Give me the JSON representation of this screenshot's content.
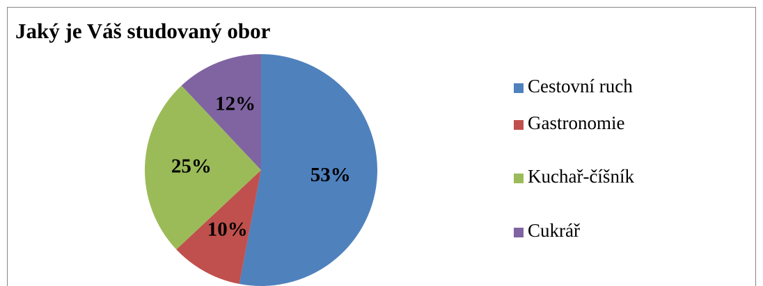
{
  "chart_data": {
    "type": "pie",
    "title": "Jaký je Váš studovaný obor",
    "categories": [
      "Cestovní ruch",
      "Gastronomie",
      "Kuchař-číšník",
      "Cukrář"
    ],
    "values": [
      53,
      10,
      25,
      12
    ],
    "value_labels": [
      "53%",
      "10%",
      "25%",
      "12%"
    ],
    "colors": [
      "#4f81bd",
      "#c0504d",
      "#9bbb59",
      "#8064a2"
    ],
    "legend": "right"
  }
}
